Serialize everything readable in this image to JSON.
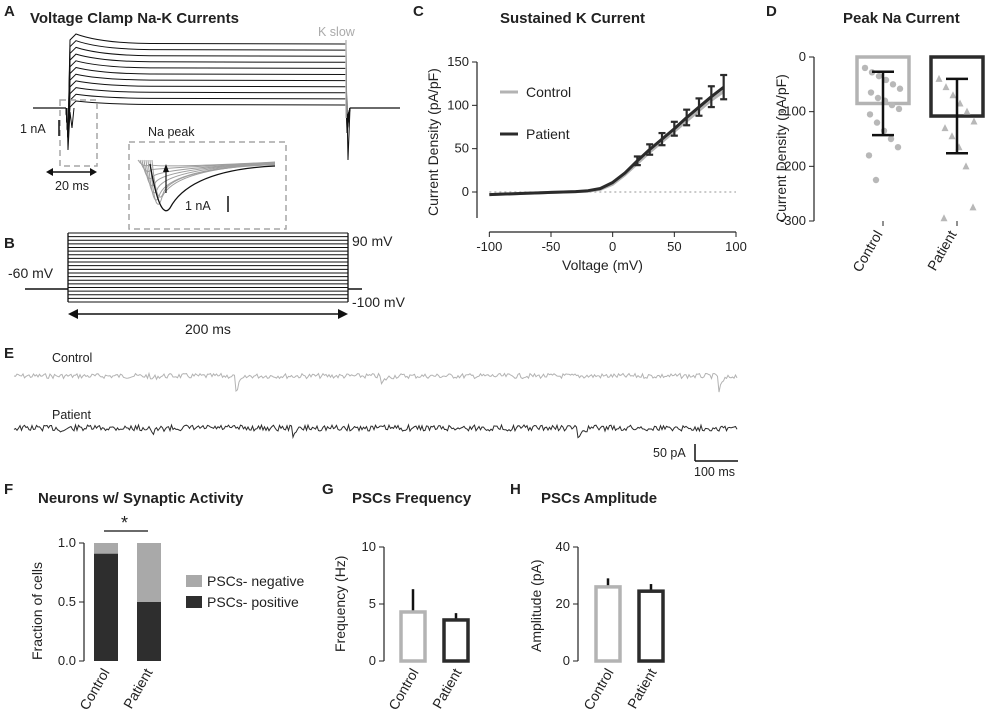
{
  "colors": {
    "control": "#b3b3b3",
    "patient": "#2b2b2b",
    "black": "#111111",
    "dash": "#a6a6a6"
  },
  "panels": {
    "A": "A",
    "B": "B",
    "C": "C",
    "D": "D",
    "E": "E",
    "F": "F",
    "G": "G",
    "H": "H"
  },
  "panelA": {
    "title": "Voltage Clamp Na-K Currents",
    "k_slow": "K slow",
    "na_peak": "Na peak",
    "scale_nA": "1 nA",
    "scale_ms": "20 ms",
    "inset_scale": "1 nA"
  },
  "panelB": {
    "v_top": "90 mV",
    "v_hold": "-60 mV",
    "v_bottom": "-100 mV",
    "duration": "200 ms"
  },
  "panelE": {
    "control": "Control",
    "patient": "Patient",
    "scale_pA": "50 pA",
    "scale_ms": "100 ms"
  },
  "legend_F": {
    "negative": "PSCs- negative",
    "positive": "PSCs- positive"
  },
  "chart_data": [
    {
      "id": "C",
      "type": "line",
      "title": "Sustained K Current",
      "xlabel": "Voltage (mV)",
      "ylabel": "Current Density (pA/pF)",
      "xlim": [
        -110,
        100
      ],
      "ylim": [
        -30,
        150
      ],
      "xticks": [
        -100,
        -50,
        0,
        50,
        100
      ],
      "yticks": [
        0,
        50,
        100,
        150
      ],
      "x": [
        -100,
        -90,
        -80,
        -70,
        -60,
        -50,
        -40,
        -30,
        -20,
        -10,
        0,
        10,
        20,
        30,
        40,
        50,
        60,
        70,
        80,
        90
      ],
      "series": [
        {
          "name": "Control",
          "values": [
            -3,
            -2.5,
            -2,
            -1.5,
            -1,
            -0.5,
            0,
            0.5,
            1,
            3,
            9,
            20,
            33,
            46,
            58,
            70,
            82,
            94,
            106,
            116
          ]
        },
        {
          "name": "Patient",
          "values": [
            -3,
            -2.5,
            -2,
            -1.5,
            -1,
            -0.5,
            0,
            0.5,
            1.5,
            4,
            11,
            22,
            36,
            49,
            61,
            73,
            86,
            98,
            110,
            121
          ]
        }
      ],
      "patient_errors": {
        "x": [
          20,
          30,
          40,
          50,
          60,
          70,
          80,
          90
        ],
        "err": [
          5,
          6,
          7,
          8,
          9,
          10,
          12,
          14
        ]
      },
      "zero_line": "dotted"
    },
    {
      "id": "D",
      "type": "bar",
      "title": "Peak Na Current",
      "ylabel": "Current Density (pA/pF)",
      "categories": [
        "Control",
        "Patient"
      ],
      "values": [
        -85,
        -108
      ],
      "errors": [
        58,
        68
      ],
      "ylim": [
        -300,
        0
      ],
      "yticks": [
        0,
        -100,
        -200,
        -300
      ],
      "points": [
        [
          -20,
          -28,
          -35,
          -42,
          -50,
          -58,
          -65,
          -75,
          -80,
          -88,
          -95,
          -105,
          -120,
          -135,
          -150,
          -165,
          -180,
          -225
        ],
        [
          -40,
          -55,
          -70,
          -85,
          -100,
          -118,
          -130,
          -145,
          -165,
          -200,
          -275,
          -295
        ]
      ]
    },
    {
      "id": "F",
      "type": "bar",
      "title": "Neurons w/ Synaptic Activity",
      "ylabel": "Fraction of cells",
      "categories": [
        "Control",
        "Patient"
      ],
      "series": [
        {
          "name": "PSCs- positive",
          "values": [
            0.91,
            0.5
          ]
        },
        {
          "name": "PSCs- negative",
          "values": [
            0.09,
            0.5
          ]
        }
      ],
      "ylim": [
        0,
        1
      ],
      "yticks": [
        "0.0",
        "0.5",
        "1.0"
      ],
      "annotation": "*"
    },
    {
      "id": "G",
      "type": "bar",
      "title": "PSCs Frequency",
      "ylabel": "Frequency (Hz)",
      "categories": [
        "Control",
        "Patient"
      ],
      "values": [
        4.3,
        3.6
      ],
      "errors": [
        2.0,
        0.6
      ],
      "ylim": [
        0,
        10
      ],
      "yticks": [
        0,
        5,
        10
      ]
    },
    {
      "id": "H",
      "type": "bar",
      "title": "PSCs Amplitude",
      "ylabel": "Amplitude (pA)",
      "categories": [
        "Control",
        "Patient"
      ],
      "values": [
        26,
        24.5
      ],
      "errors": [
        3,
        2.5
      ],
      "ylim": [
        0,
        40
      ],
      "yticks": [
        0,
        20,
        40
      ]
    }
  ]
}
